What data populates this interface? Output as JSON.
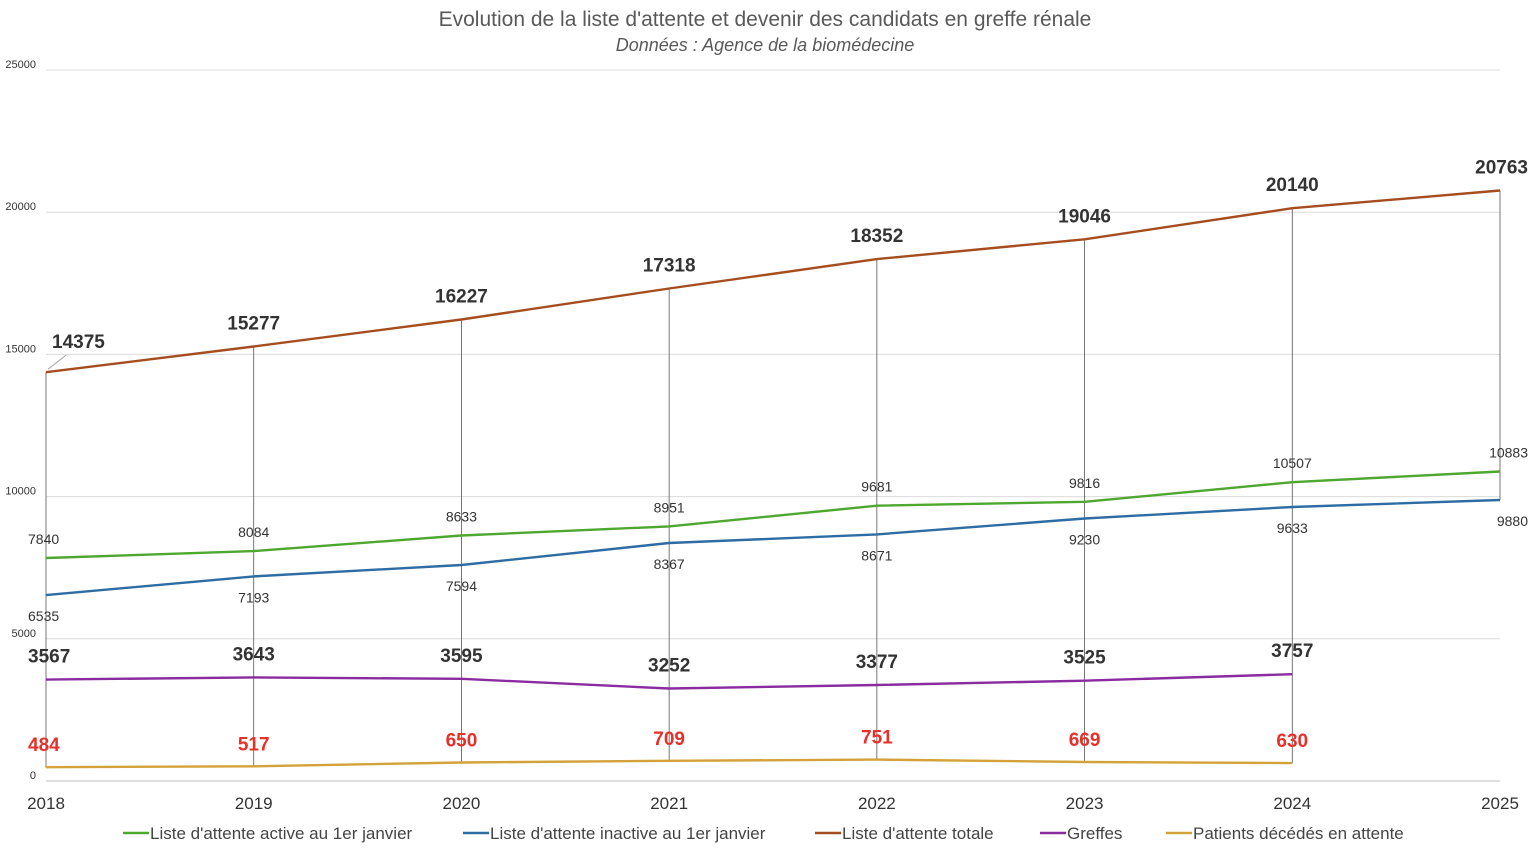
{
  "chart_data": {
    "type": "line",
    "title": "Evolution de la liste d'attente et devenir des candidats en greffe rénale",
    "subtitle": "Données : Agence de la biomédecine",
    "x": [
      "2018",
      "2019",
      "2020",
      "2021",
      "2022",
      "2023",
      "2024",
      "2025"
    ],
    "ylim": [
      0,
      25000
    ],
    "yticks": [
      0,
      5000,
      10000,
      15000,
      20000,
      25000
    ],
    "grid": true,
    "legend_position": "bottom",
    "series": [
      {
        "name": "Liste d'attente active au 1er janvier",
        "color": "#4ea72e",
        "label_style": "small",
        "label_position": "above",
        "values": [
          7840,
          8084,
          8633,
          8951,
          9681,
          9816,
          10507,
          10883
        ]
      },
      {
        "name": "Liste d'attente inactive au 1er janvier",
        "color": "#2e6da4",
        "label_style": "small",
        "label_position": "below",
        "values": [
          6535,
          7193,
          7594,
          8367,
          8671,
          9230,
          9633,
          9880
        ]
      },
      {
        "name": "Liste d'attente totale",
        "color": "#a64d1f",
        "label_style": "big",
        "label_position": "above",
        "values": [
          14375,
          15277,
          16227,
          17318,
          18352,
          19046,
          20140,
          20763
        ]
      },
      {
        "name": "Greffes",
        "color": "#8a2ca0",
        "label_style": "big",
        "label_position": "above",
        "values": [
          3567,
          3643,
          3595,
          3252,
          3377,
          3525,
          3757,
          null
        ]
      },
      {
        "name": "Patients décédés en attente",
        "color": "#d4a23a",
        "label_style": "red",
        "label_position": "high",
        "values": [
          484,
          517,
          650,
          709,
          751,
          669,
          630,
          null
        ]
      }
    ]
  }
}
